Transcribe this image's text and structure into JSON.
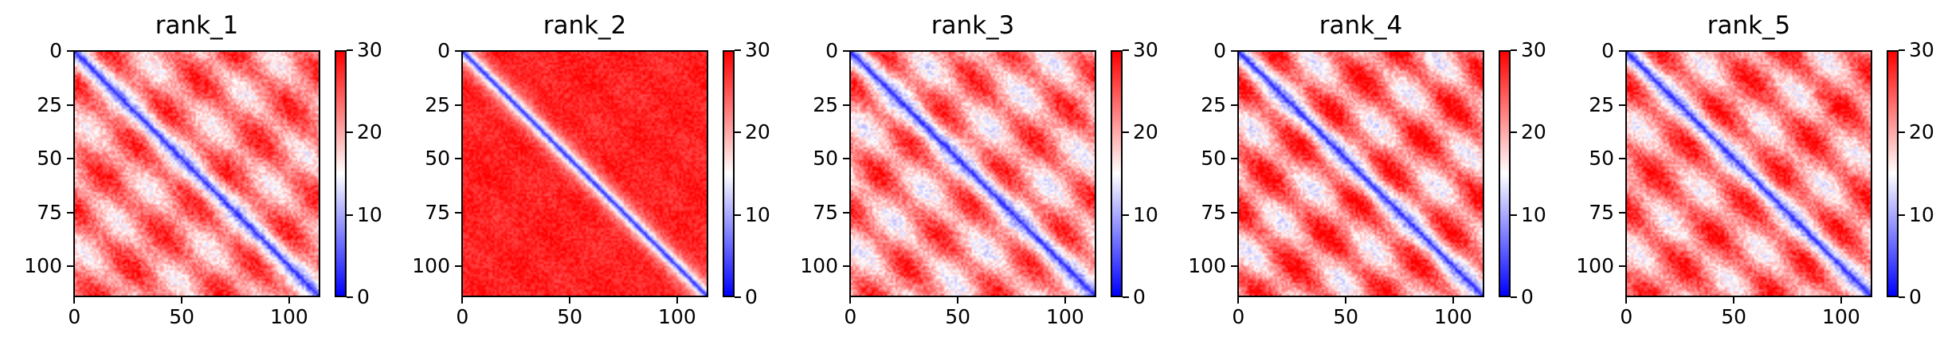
{
  "chart_data": [
    {
      "type": "heatmap",
      "title": "rank_1",
      "rows": 115,
      "cols": 115,
      "colormap": "bwr",
      "colors": {
        "low": "#0000ff",
        "mid": "#ffffff",
        "high": "#ff0000"
      },
      "vmin": 0,
      "vmax": 30,
      "xticks": [
        0,
        50,
        100
      ],
      "yticks": [
        0,
        25,
        50,
        75,
        100
      ],
      "colorbar_ticks": [
        0,
        10,
        20,
        30
      ],
      "pattern": {
        "diag_value": 2,
        "off_diag_mean": 22,
        "band_period": 30,
        "band_amplitude": 8,
        "noise": 3
      }
    },
    {
      "type": "heatmap",
      "title": "rank_2",
      "rows": 115,
      "cols": 115,
      "colormap": "bwr",
      "colors": {
        "low": "#0000ff",
        "mid": "#ffffff",
        "high": "#ff0000"
      },
      "vmin": 0,
      "vmax": 30,
      "xticks": [
        0,
        50,
        100
      ],
      "yticks": [
        0,
        25,
        50,
        75,
        100
      ],
      "colorbar_ticks": [
        0,
        10,
        20,
        30
      ],
      "pattern": {
        "diag_value": 2,
        "off_diag_mean": 28,
        "band_period": 30,
        "band_amplitude": 1,
        "noise": 2
      }
    },
    {
      "type": "heatmap",
      "title": "rank_3",
      "rows": 115,
      "cols": 115,
      "colormap": "bwr",
      "colors": {
        "low": "#0000ff",
        "mid": "#ffffff",
        "high": "#ff0000"
      },
      "vmin": 0,
      "vmax": 30,
      "xticks": [
        0,
        50,
        100
      ],
      "yticks": [
        0,
        25,
        50,
        75,
        100
      ],
      "colorbar_ticks": [
        0,
        10,
        20,
        30
      ],
      "pattern": {
        "diag_value": 2,
        "off_diag_mean": 21,
        "band_period": 30,
        "band_amplitude": 9,
        "noise": 3
      }
    },
    {
      "type": "heatmap",
      "title": "rank_4",
      "rows": 115,
      "cols": 115,
      "colormap": "bwr",
      "colors": {
        "low": "#0000ff",
        "mid": "#ffffff",
        "high": "#ff0000"
      },
      "vmin": 0,
      "vmax": 30,
      "xticks": [
        0,
        50,
        100
      ],
      "yticks": [
        0,
        25,
        50,
        75,
        100
      ],
      "colorbar_ticks": [
        0,
        10,
        20,
        30
      ],
      "pattern": {
        "diag_value": 2,
        "off_diag_mean": 22,
        "band_period": 30,
        "band_amplitude": 10,
        "noise": 3
      }
    },
    {
      "type": "heatmap",
      "title": "rank_5",
      "rows": 115,
      "cols": 115,
      "colormap": "bwr",
      "colors": {
        "low": "#0000ff",
        "mid": "#ffffff",
        "high": "#ff0000"
      },
      "vmin": 0,
      "vmax": 30,
      "xticks": [
        0,
        50,
        100
      ],
      "yticks": [
        0,
        25,
        50,
        75,
        100
      ],
      "colorbar_ticks": [
        0,
        10,
        20,
        30
      ],
      "pattern": {
        "diag_value": 2,
        "off_diag_mean": 22,
        "band_period": 30,
        "band_amplitude": 9,
        "noise": 3
      }
    }
  ]
}
